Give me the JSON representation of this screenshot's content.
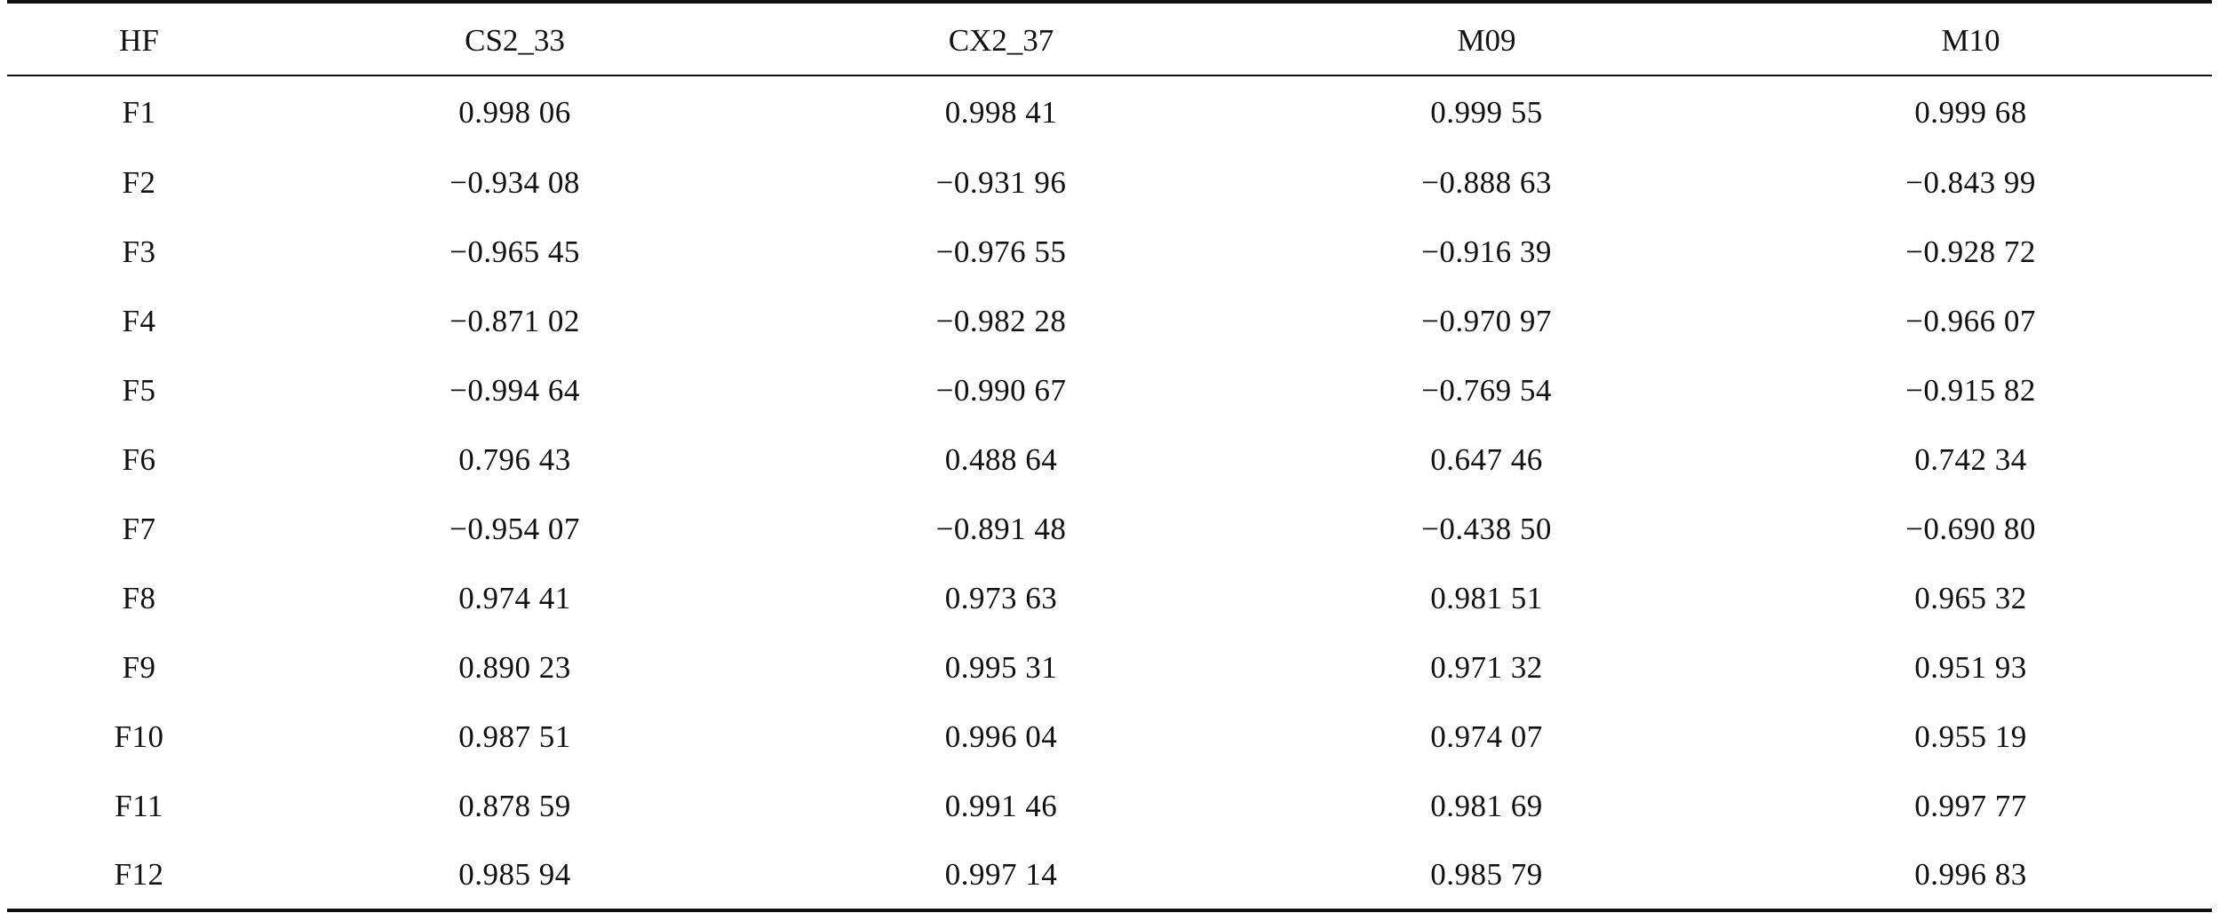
{
  "table": {
    "headers": [
      "HF",
      "CS2_33",
      "CX2_37",
      "M09",
      "M10"
    ],
    "rows": [
      [
        "F1",
        "0.998 06",
        "0.998 41",
        "0.999 55",
        "0.999 68"
      ],
      [
        "F2",
        "−0.934 08",
        "−0.931 96",
        "−0.888 63",
        "−0.843 99"
      ],
      [
        "F3",
        "−0.965 45",
        "−0.976 55",
        "−0.916 39",
        "−0.928 72"
      ],
      [
        "F4",
        "−0.871 02",
        "−0.982 28",
        "−0.970 97",
        "−0.966 07"
      ],
      [
        "F5",
        "−0.994 64",
        "−0.990 67",
        "−0.769 54",
        "−0.915 82"
      ],
      [
        "F6",
        "0.796 43",
        "0.488 64",
        "0.647 46",
        "0.742 34"
      ],
      [
        "F7",
        "−0.954 07",
        "−0.891 48",
        "−0.438 50",
        "−0.690 80"
      ],
      [
        "F8",
        "0.974 41",
        "0.973 63",
        "0.981 51",
        "0.965 32"
      ],
      [
        "F9",
        "0.890 23",
        "0.995 31",
        "0.971 32",
        "0.951 93"
      ],
      [
        "F10",
        "0.987 51",
        "0.996 04",
        "0.974 07",
        "0.955 19"
      ],
      [
        "F11",
        "0.878 59",
        "0.991 46",
        "0.981 69",
        "0.997 77"
      ],
      [
        "F12",
        "0.985 94",
        "0.997 14",
        "0.985 79",
        "0.996 83"
      ]
    ]
  }
}
